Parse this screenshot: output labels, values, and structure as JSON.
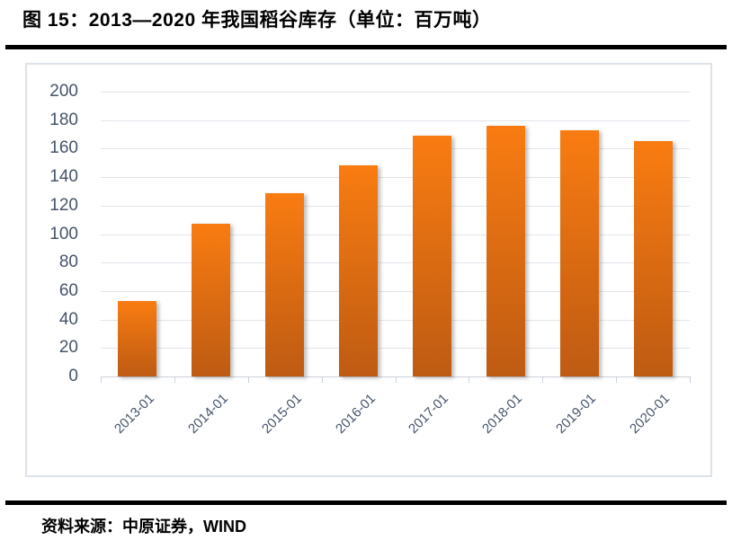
{
  "figure": {
    "title": "图 15：2013—2020 年我国稻谷库存（单位：百万吨）",
    "source_note": "资料来源：中原证券，WIND"
  },
  "chart_data": {
    "type": "bar",
    "title": "2013—2020 年我国稻谷库存",
    "unit_label": "百万吨",
    "categories": [
      "2013-01",
      "2014-01",
      "2015-01",
      "2016-01",
      "2017-01",
      "2018-01",
      "2019-01",
      "2020-01"
    ],
    "values": [
      53,
      107,
      129,
      148,
      169,
      176,
      173,
      165
    ],
    "xlabel": "",
    "ylabel": "",
    "ylim": [
      0,
      200
    ],
    "ytick_step": 20,
    "grid": true,
    "legend": false,
    "colors": {
      "bar_gradient_top": "#F97C11",
      "bar_gradient_bottom": "#BE5B13",
      "gridline": "#E0E4EB",
      "axis_line": "#C9CFD9",
      "tick_label": "#44546A"
    }
  }
}
